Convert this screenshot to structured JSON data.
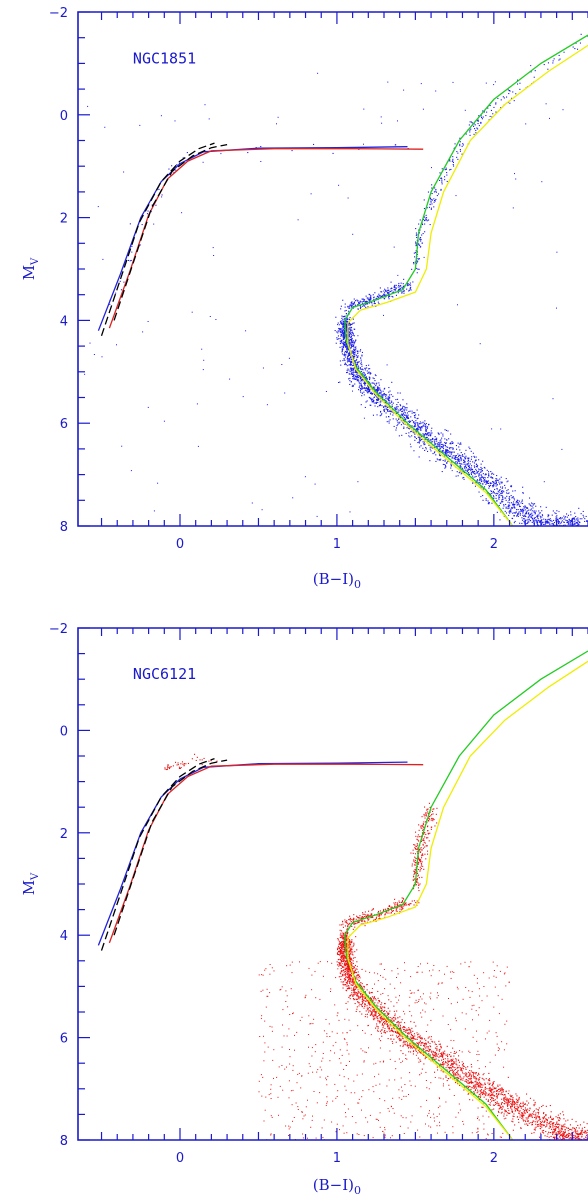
{
  "chart_data": [
    {
      "type": "scatter",
      "panel_label": "NGC1851",
      "xlabel_main": "(B−I)",
      "xlabel_sub": "0",
      "ylabel_main": "M",
      "ylabel_sub": "V",
      "xlim": [
        -0.65,
        2.6
      ],
      "ylim": [
        8,
        -2
      ],
      "xticks": [
        0,
        1,
        2
      ],
      "yticks": [
        -2,
        0,
        2,
        4,
        6,
        8
      ],
      "point_color": "#1a1aee",
      "point_name": "NGC1851 stars",
      "main_sequence": [
        [
          1.05,
          4.0
        ],
        [
          1.06,
          4.4
        ],
        [
          1.12,
          5.0
        ],
        [
          1.3,
          5.6
        ],
        [
          1.55,
          6.2
        ],
        [
          1.8,
          6.75
        ],
        [
          2.05,
          7.4
        ],
        [
          2.3,
          8.0
        ],
        [
          2.6,
          8.0
        ]
      ],
      "subgiant_branch": [
        [
          1.05,
          3.75
        ],
        [
          1.25,
          3.55
        ],
        [
          1.45,
          3.3
        ]
      ],
      "red_giant_branch": [
        [
          1.5,
          3.0
        ],
        [
          1.52,
          2.3
        ],
        [
          1.62,
          1.5
        ],
        [
          1.8,
          0.5
        ],
        [
          2.05,
          -0.3
        ],
        [
          2.6,
          -1.5
        ]
      ],
      "horizontal_branch": [
        [
          -0.5,
          4.1
        ],
        [
          -0.35,
          3.0
        ],
        [
          -0.2,
          1.8
        ],
        [
          -0.05,
          1.0
        ],
        [
          0.1,
          0.68
        ],
        [
          0.6,
          0.64
        ],
        [
          1.45,
          0.65
        ]
      ],
      "isochrones": [
        {
          "color": "#22cc22",
          "dash": "",
          "points": [
            [
              2.12,
              8.0
            ],
            [
              1.95,
              7.3
            ],
            [
              1.7,
              6.65
            ],
            [
              1.45,
              6.0
            ],
            [
              1.25,
              5.4
            ],
            [
              1.12,
              4.9
            ],
            [
              1.06,
              4.4
            ],
            [
              1.05,
              4.0
            ],
            [
              1.1,
              3.75
            ],
            [
              1.25,
              3.6
            ],
            [
              1.42,
              3.4
            ],
            [
              1.5,
              3.0
            ],
            [
              1.52,
              2.3
            ],
            [
              1.6,
              1.5
            ],
            [
              1.78,
              0.5
            ],
            [
              2.0,
              -0.3
            ],
            [
              2.3,
              -1.0
            ],
            [
              2.6,
              -1.55
            ]
          ]
        },
        {
          "color": "#eeee00",
          "dash": "",
          "points": [
            [
              2.12,
              8.0
            ],
            [
              1.95,
              7.35
            ],
            [
              1.7,
              6.7
            ],
            [
              1.45,
              6.05
            ],
            [
              1.25,
              5.45
            ],
            [
              1.12,
              4.95
            ],
            [
              1.07,
              4.45
            ],
            [
              1.07,
              4.05
            ],
            [
              1.15,
              3.8
            ],
            [
              1.32,
              3.65
            ],
            [
              1.5,
              3.45
            ],
            [
              1.57,
              3.0
            ],
            [
              1.6,
              2.3
            ],
            [
              1.68,
              1.5
            ],
            [
              1.85,
              0.5
            ],
            [
              2.07,
              -0.2
            ],
            [
              2.35,
              -0.85
            ],
            [
              2.6,
              -1.35
            ]
          ]
        },
        {
          "color": "#2222dd",
          "dash": "",
          "points": [
            [
              -0.52,
              4.2
            ],
            [
              -0.38,
              3.1
            ],
            [
              -0.25,
              2.0
            ],
            [
              -0.12,
              1.3
            ],
            [
              0.0,
              0.95
            ],
            [
              0.15,
              0.72
            ],
            [
              0.5,
              0.65
            ],
            [
              1.0,
              0.64
            ],
            [
              1.45,
              0.62
            ]
          ]
        },
        {
          "color": "#dd2222",
          "dash": "",
          "points": [
            [
              -0.45,
              4.15
            ],
            [
              -0.32,
              3.05
            ],
            [
              -0.2,
              1.95
            ],
            [
              -0.08,
              1.25
            ],
            [
              0.05,
              0.9
            ],
            [
              0.2,
              0.7
            ],
            [
              0.6,
              0.66
            ],
            [
              1.1,
              0.66
            ],
            [
              1.55,
              0.67
            ]
          ]
        },
        {
          "color": "#000000",
          "dash": "8,4",
          "points": [
            [
              -0.5,
              4.3
            ],
            [
              -0.38,
              3.2
            ],
            [
              -0.26,
              2.1
            ],
            [
              -0.12,
              1.3
            ],
            [
              0.0,
              0.9
            ],
            [
              0.12,
              0.66
            ],
            [
              0.22,
              0.55
            ]
          ]
        },
        {
          "color": "#000000",
          "dash": "8,4",
          "points": [
            [
              -0.42,
              4.0
            ],
            [
              -0.3,
              2.9
            ],
            [
              -0.18,
              1.8
            ],
            [
              -0.05,
              1.1
            ],
            [
              0.08,
              0.8
            ],
            [
              0.2,
              0.64
            ],
            [
              0.3,
              0.58
            ]
          ]
        }
      ]
    },
    {
      "type": "scatter",
      "panel_label": "NGC6121",
      "xlabel_main": "(B−I)",
      "xlabel_sub": "0",
      "ylabel_main": "M",
      "ylabel_sub": "V",
      "xlim": [
        -0.65,
        2.6
      ],
      "ylim": [
        8,
        -2
      ],
      "xticks": [
        0,
        1,
        2
      ],
      "yticks": [
        -2,
        0,
        2,
        4,
        6,
        8
      ],
      "point_color": "#ee1111",
      "point_name": "NGC6121 stars",
      "main_sequence": [
        [
          1.05,
          4.0
        ],
        [
          1.05,
          4.4
        ],
        [
          1.1,
          5.0
        ],
        [
          1.3,
          5.65
        ],
        [
          1.55,
          6.2
        ],
        [
          1.85,
          6.8
        ],
        [
          2.1,
          7.3
        ],
        [
          2.4,
          7.8
        ],
        [
          2.6,
          8.0
        ]
      ],
      "subgiant_branch": [
        [
          1.05,
          3.75
        ],
        [
          1.25,
          3.6
        ],
        [
          1.45,
          3.35
        ]
      ],
      "red_giant_branch": [
        [
          1.5,
          3.0
        ],
        [
          1.52,
          2.3
        ],
        [
          1.6,
          1.5
        ]
      ],
      "horizontal_branch": [
        [
          -0.1,
          0.75
        ],
        [
          0.0,
          0.65
        ],
        [
          0.1,
          0.6
        ],
        [
          0.2,
          0.58
        ]
      ],
      "isochrones": [
        {
          "color": "#22cc22",
          "dash": "",
          "points": [
            [
              2.12,
              8.0
            ],
            [
              1.95,
              7.3
            ],
            [
              1.7,
              6.65
            ],
            [
              1.45,
              6.0
            ],
            [
              1.25,
              5.4
            ],
            [
              1.12,
              4.9
            ],
            [
              1.06,
              4.4
            ],
            [
              1.05,
              4.0
            ],
            [
              1.1,
              3.75
            ],
            [
              1.25,
              3.6
            ],
            [
              1.42,
              3.4
            ],
            [
              1.5,
              3.0
            ],
            [
              1.52,
              2.3
            ],
            [
              1.6,
              1.5
            ],
            [
              1.78,
              0.5
            ],
            [
              2.0,
              -0.3
            ],
            [
              2.3,
              -1.0
            ],
            [
              2.6,
              -1.55
            ]
          ]
        },
        {
          "color": "#eeee00",
          "dash": "",
          "points": [
            [
              2.12,
              8.0
            ],
            [
              1.95,
              7.35
            ],
            [
              1.7,
              6.7
            ],
            [
              1.45,
              6.05
            ],
            [
              1.25,
              5.45
            ],
            [
              1.12,
              4.95
            ],
            [
              1.07,
              4.45
            ],
            [
              1.07,
              4.05
            ],
            [
              1.15,
              3.8
            ],
            [
              1.32,
              3.65
            ],
            [
              1.5,
              3.45
            ],
            [
              1.57,
              3.0
            ],
            [
              1.6,
              2.3
            ],
            [
              1.68,
              1.5
            ],
            [
              1.85,
              0.5
            ],
            [
              2.07,
              -0.2
            ],
            [
              2.35,
              -0.85
            ],
            [
              2.6,
              -1.35
            ]
          ]
        },
        {
          "color": "#2222dd",
          "dash": "",
          "points": [
            [
              -0.52,
              4.2
            ],
            [
              -0.38,
              3.1
            ],
            [
              -0.25,
              2.0
            ],
            [
              -0.12,
              1.3
            ],
            [
              0.0,
              0.95
            ],
            [
              0.15,
              0.72
            ],
            [
              0.5,
              0.65
            ],
            [
              1.0,
              0.64
            ],
            [
              1.45,
              0.62
            ]
          ]
        },
        {
          "color": "#dd2222",
          "dash": "",
          "points": [
            [
              -0.45,
              4.15
            ],
            [
              -0.32,
              3.05
            ],
            [
              -0.2,
              1.95
            ],
            [
              -0.08,
              1.25
            ],
            [
              0.05,
              0.9
            ],
            [
              0.2,
              0.7
            ],
            [
              0.6,
              0.66
            ],
            [
              1.1,
              0.66
            ],
            [
              1.55,
              0.67
            ]
          ]
        },
        {
          "color": "#000000",
          "dash": "8,4",
          "points": [
            [
              -0.5,
              4.3
            ],
            [
              -0.38,
              3.2
            ],
            [
              -0.26,
              2.1
            ],
            [
              -0.12,
              1.3
            ],
            [
              0.0,
              0.9
            ],
            [
              0.12,
              0.66
            ],
            [
              0.22,
              0.55
            ]
          ]
        },
        {
          "color": "#000000",
          "dash": "8,4",
          "points": [
            [
              -0.42,
              4.0
            ],
            [
              -0.3,
              2.9
            ],
            [
              -0.18,
              1.8
            ],
            [
              -0.05,
              1.1
            ],
            [
              0.08,
              0.8
            ],
            [
              0.2,
              0.64
            ],
            [
              0.3,
              0.58
            ]
          ]
        }
      ]
    }
  ]
}
